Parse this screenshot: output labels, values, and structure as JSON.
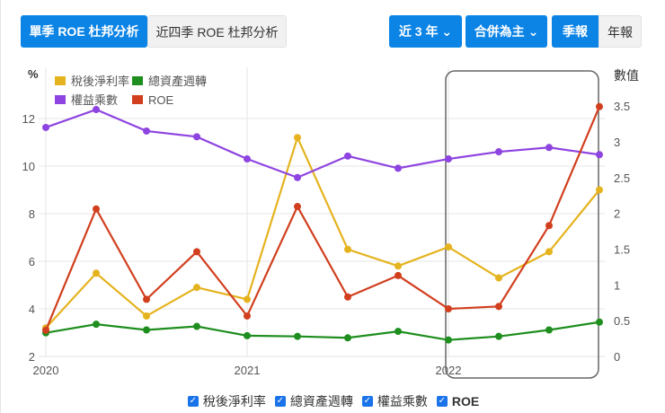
{
  "toolbar": {
    "tabs": [
      {
        "label": "單季 ROE 杜邦分析",
        "active": true
      },
      {
        "label": "近四季 ROE 杜邦分析",
        "active": false
      }
    ],
    "period_dropdown": "近 3 年",
    "consolidation_dropdown": "合併為主",
    "report_toggle": [
      {
        "label": "季報",
        "active": true
      },
      {
        "label": "年報",
        "active": false
      }
    ]
  },
  "chart_data": {
    "type": "line",
    "title": "",
    "ylabel_left": "%",
    "ylabel_right": "數值",
    "ylim_left": [
      2,
      12.5
    ],
    "ylim_right": [
      0,
      3.6
    ],
    "yticks_left": [
      2,
      4,
      6,
      8,
      10,
      12
    ],
    "yticks_right": [
      0,
      0.5,
      1,
      1.5,
      2,
      2.5,
      3,
      3.5
    ],
    "xtick_labels": [
      "2020",
      "2021",
      "2022"
    ],
    "x": [
      "2020Q1",
      "2020Q2",
      "2020Q3",
      "2020Q4",
      "2021Q1",
      "2021Q2",
      "2021Q3",
      "2021Q4",
      "2022Q1",
      "2022Q2",
      "2022Q3",
      "2022Q4"
    ],
    "series": [
      {
        "name": "稅後淨利率",
        "axis": "left",
        "color": "#e5b31e",
        "values": [
          3.2,
          5.5,
          3.7,
          4.9,
          4.4,
          11.2,
          6.5,
          5.8,
          6.6,
          5.3,
          6.4,
          9.0
        ]
      },
      {
        "name": "總資產週轉",
        "axis": "right",
        "color": "#1e8e1e",
        "values": [
          0.33,
          0.45,
          0.37,
          0.42,
          0.29,
          0.28,
          0.26,
          0.35,
          0.23,
          0.28,
          0.37,
          0.48
        ]
      },
      {
        "name": "權益乘數",
        "axis": "right",
        "color": "#8e44e0",
        "values": [
          3.2,
          3.45,
          3.15,
          3.07,
          2.76,
          2.5,
          2.8,
          2.63,
          2.76,
          2.86,
          2.92,
          2.82
        ]
      },
      {
        "name": "ROE",
        "axis": "left",
        "color": "#d13f1e",
        "values": [
          3.1,
          8.2,
          4.4,
          6.4,
          3.7,
          8.3,
          4.5,
          5.4,
          4.0,
          4.1,
          7.5,
          12.5
        ]
      }
    ],
    "grid": true,
    "legend_position": "top-left",
    "highlight_box": {
      "from": "2022Q1",
      "to": "2022Q4"
    }
  },
  "legend_bottom": [
    {
      "label": "稅後淨利率",
      "checked": true
    },
    {
      "label": "總資產週轉",
      "checked": true
    },
    {
      "label": "權益乘數",
      "checked": true
    },
    {
      "label": "ROE",
      "checked": true
    }
  ]
}
